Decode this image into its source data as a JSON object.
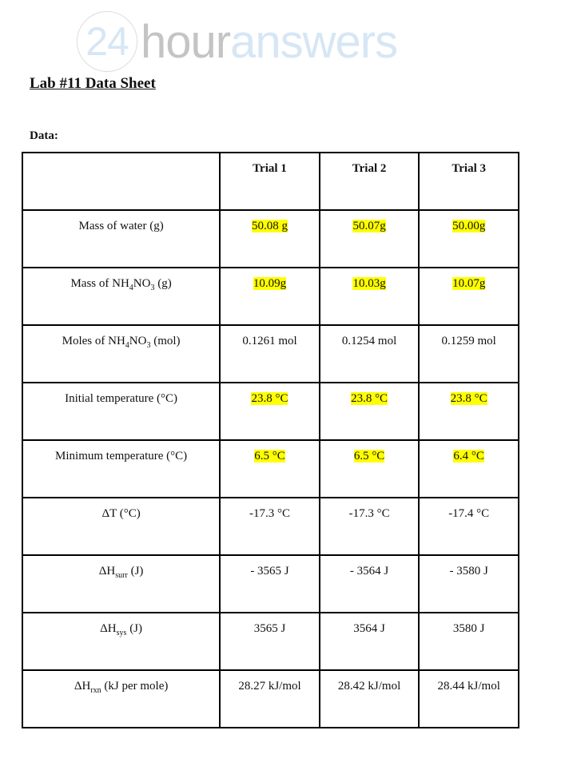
{
  "watermark": {
    "num": "24",
    "hour": "hour",
    "answers": "answers"
  },
  "title": "Lab #11 Data Sheet",
  "data_label": "Data:",
  "highlight_color": "#ffff00",
  "headers": [
    "",
    "Trial 1",
    "Trial 2",
    "Trial 3"
  ],
  "rows": [
    {
      "label": [
        {
          "t": "Mass of water (g)"
        }
      ],
      "cells": [
        {
          "text": "50.08 g",
          "hl": true
        },
        {
          "text": "50.07g",
          "hl": true
        },
        {
          "text": "50.00g",
          "hl": true
        }
      ]
    },
    {
      "label": [
        {
          "t": "Mass of NH"
        },
        {
          "t": "4",
          "sub": true
        },
        {
          "t": "NO"
        },
        {
          "t": "3",
          "sub": true
        },
        {
          "t": " (g)"
        }
      ],
      "cells": [
        {
          "text": "10.09g",
          "hl": true
        },
        {
          "text": "10.03g",
          "hl": true
        },
        {
          "text": "10.07g",
          "hl": true
        }
      ]
    },
    {
      "label": [
        {
          "t": "Moles of NH"
        },
        {
          "t": "4",
          "sub": true
        },
        {
          "t": "NO"
        },
        {
          "t": "3",
          "sub": true
        },
        {
          "t": " (mol)"
        }
      ],
      "cells": [
        {
          "text": "0.1261 mol"
        },
        {
          "text": "0.1254 mol"
        },
        {
          "text": "0.1259 mol"
        }
      ]
    },
    {
      "label": [
        {
          "t": "Initial temperature (°C)"
        }
      ],
      "cells": [
        {
          "text": "23.8 °C",
          "hl": true
        },
        {
          "text": "23.8 °C",
          "hl": true
        },
        {
          "text": "23.8 °C",
          "hl": true
        }
      ]
    },
    {
      "label": [
        {
          "t": "Minimum temperature (°C)"
        }
      ],
      "cells": [
        {
          "text": "6.5 °C",
          "hl": true
        },
        {
          "text": "6.5 °C",
          "hl": true
        },
        {
          "text": "6.4 °C",
          "hl": true
        }
      ]
    },
    {
      "label": [
        {
          "t": "ΔT (°C)"
        }
      ],
      "cells": [
        {
          "text": "-17.3 °C"
        },
        {
          "text": "-17.3 °C"
        },
        {
          "text": "-17.4 °C"
        }
      ]
    },
    {
      "label": [
        {
          "t": "ΔH"
        },
        {
          "t": "surr",
          "sub": true
        },
        {
          "t": " (J)"
        }
      ],
      "cells": [
        {
          "text": "- 3565 J"
        },
        {
          "text": "- 3564 J"
        },
        {
          "text": "- 3580 J"
        }
      ]
    },
    {
      "label": [
        {
          "t": "ΔH"
        },
        {
          "t": "sys",
          "sub": true
        },
        {
          "t": " (J)"
        }
      ],
      "cells": [
        {
          "text": "3565 J"
        },
        {
          "text": "3564 J"
        },
        {
          "text": "3580 J"
        }
      ]
    },
    {
      "label": [
        {
          "t": "ΔH"
        },
        {
          "t": "rxn",
          "sub": true
        },
        {
          "t": " (kJ per mole)"
        }
      ],
      "cells": [
        {
          "text": "28.27 kJ/mol"
        },
        {
          "text": "28.42 kJ/mol"
        },
        {
          "text": "28.44 kJ/mol"
        }
      ]
    }
  ]
}
